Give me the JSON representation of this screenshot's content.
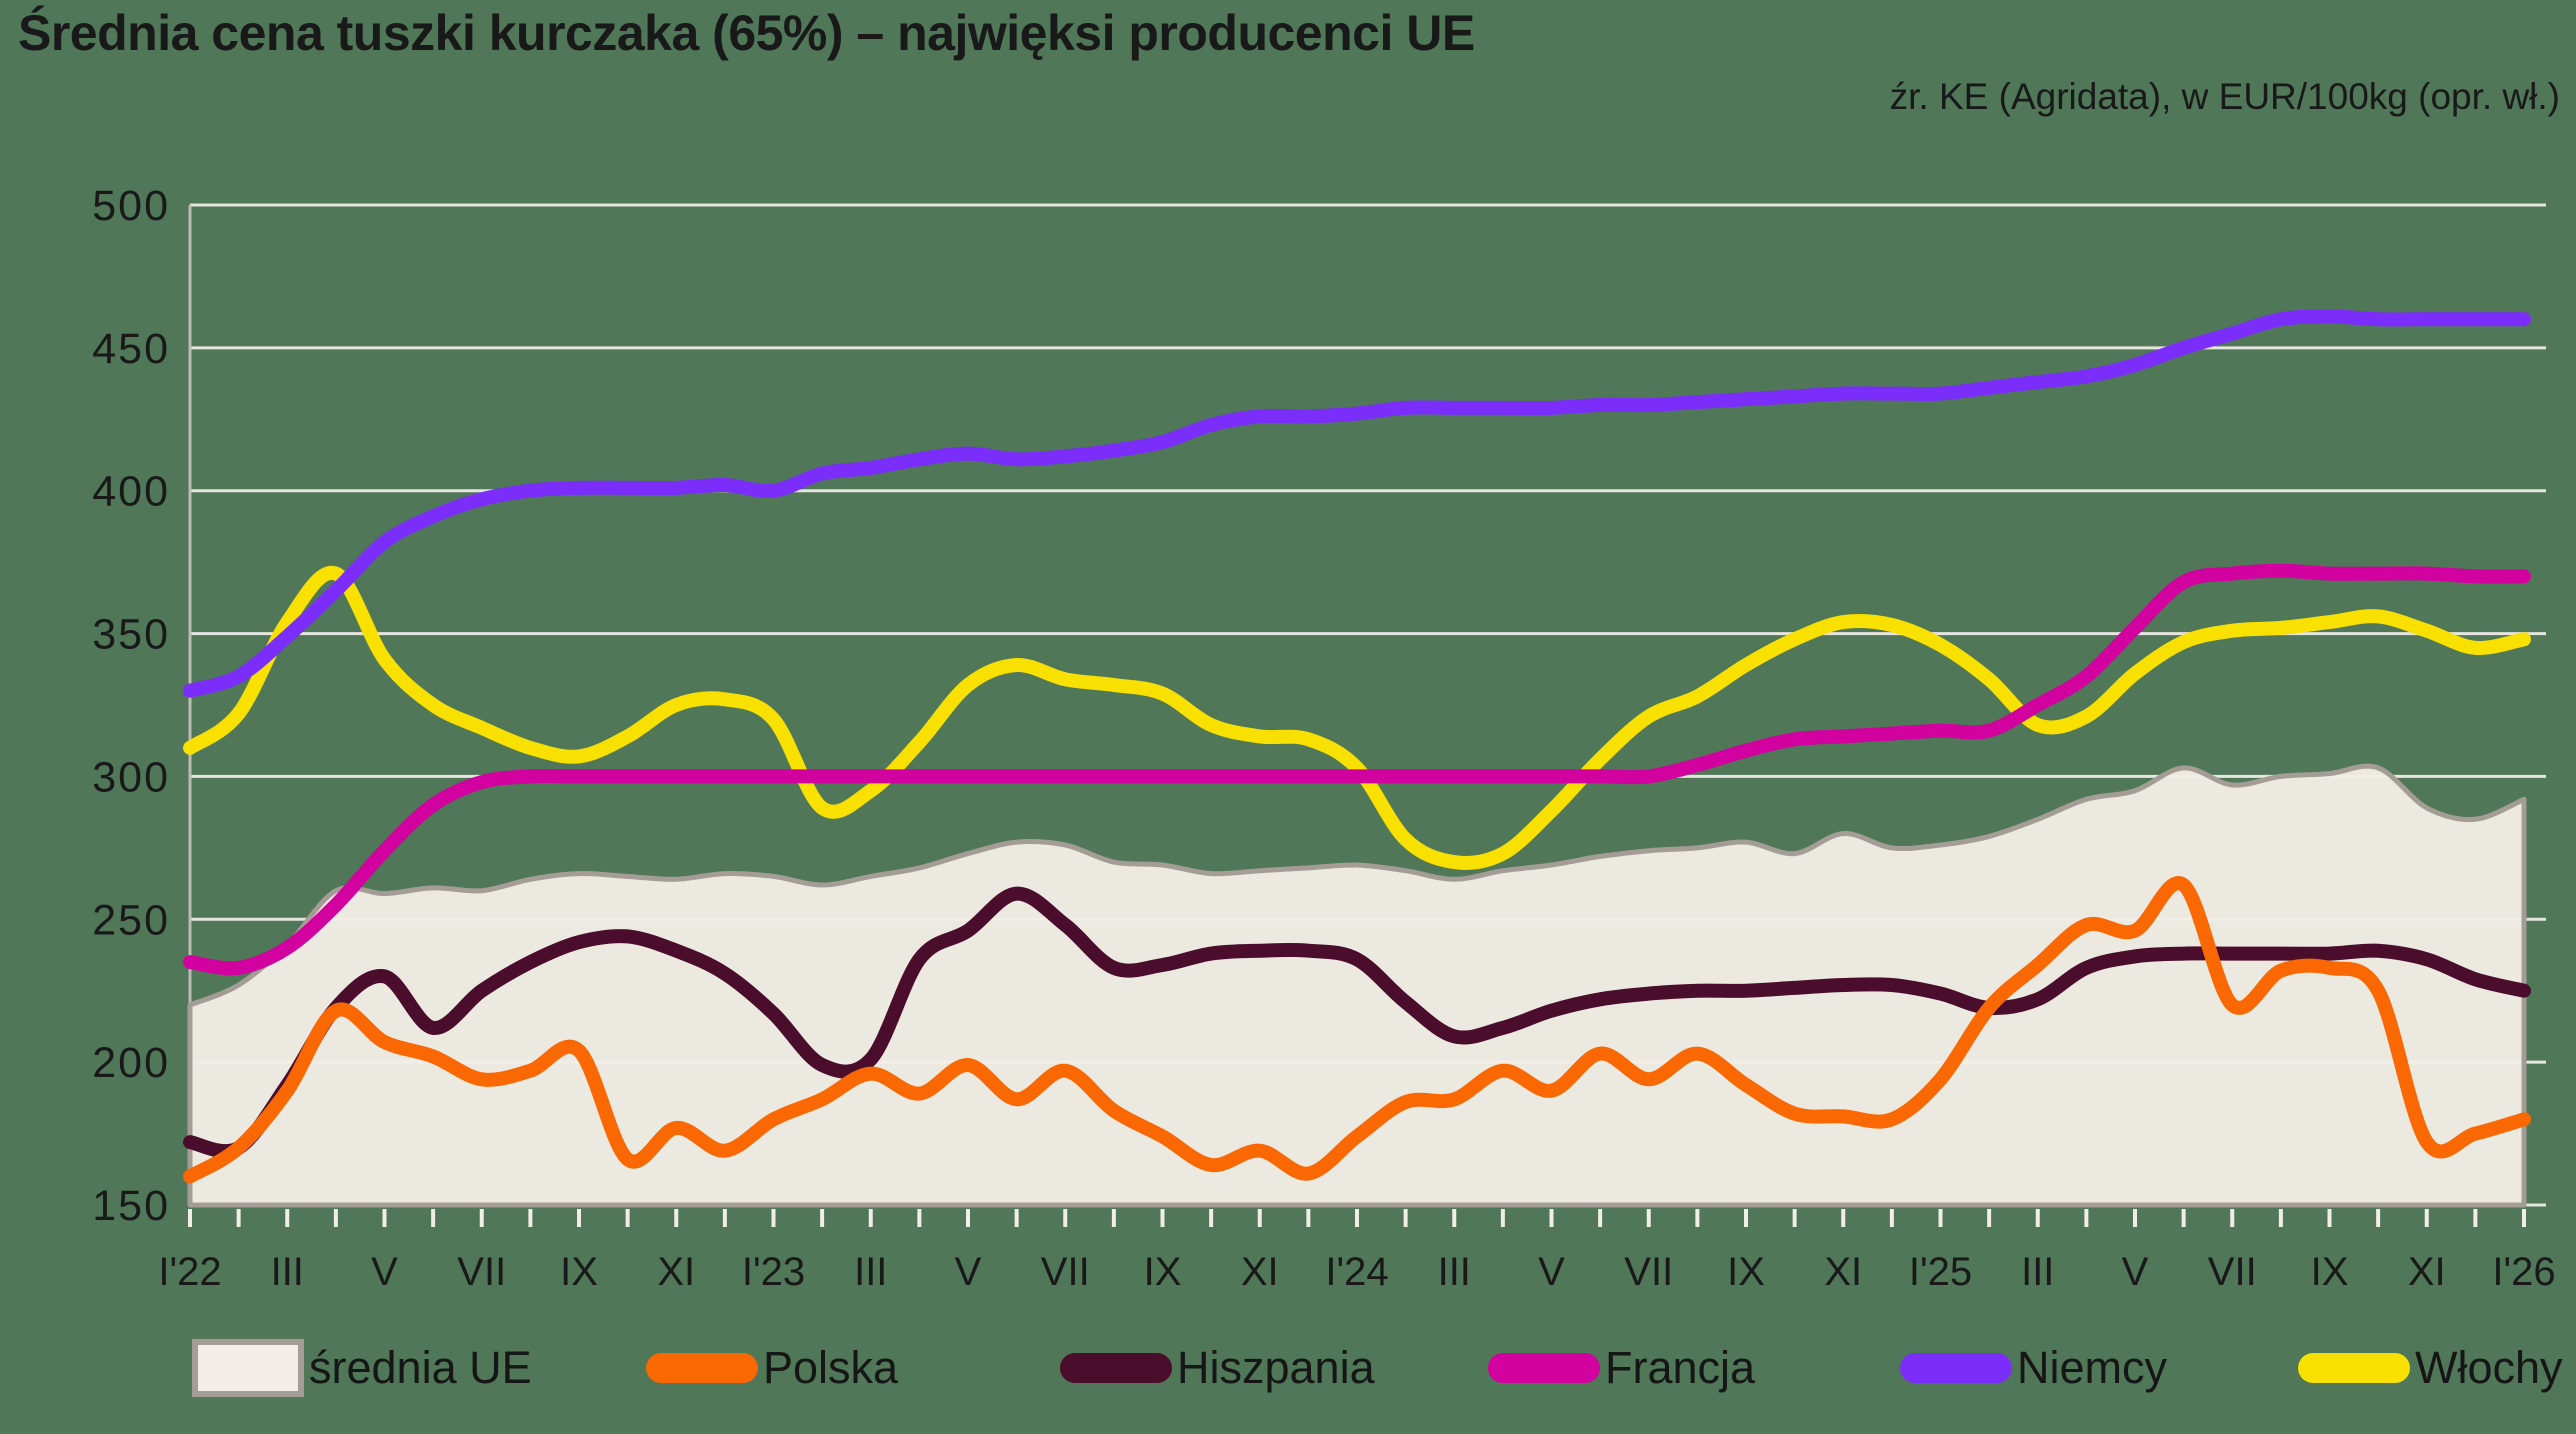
{
  "title": "Średnia cena tuszki kurczaka (65%) – najwięksi producenci UE",
  "source_note": "źr. KE (Agridata), w EUR/100kg (opr. wł.)",
  "colors": {
    "background": "#4F7758",
    "grid": "#E7E5E0",
    "axis": "#BFBAB2",
    "tick": "#F2EDE5",
    "text": "#191919",
    "area_fill": "#F2EDE7",
    "area_stroke": "#A49D95",
    "polska": "#F96802",
    "hiszpania": "#4A0D2C",
    "francja": "#D2009F",
    "niemcy": "#7B2EFA",
    "wlochy": "#F8E000"
  },
  "y_axis": {
    "min": 150,
    "max": 500,
    "step": 50,
    "tick_labels": [
      "150",
      "200",
      "250",
      "300",
      "350",
      "400",
      "450",
      "500"
    ]
  },
  "x_axis": {
    "tick_labels": [
      "I'22",
      "III",
      "V",
      "VII",
      "IX",
      "XI",
      "I'23",
      "III",
      "V",
      "VII",
      "IX",
      "XI",
      "I'24",
      "III",
      "V",
      "VII",
      "IX",
      "XI",
      "I'25",
      "III",
      "V",
      "VII",
      "IX",
      "XI",
      "I'26"
    ]
  },
  "chart_data": {
    "type": "line",
    "title": "Średnia cena tuszki kurczaka (65%) – najwięksi producenci UE",
    "subtitle": "źr. KE (Agridata), w EUR/100kg (opr. wł.)",
    "ylabel": "EUR/100kg",
    "ylim": [
      150,
      500
    ],
    "grid": true,
    "legend_position": "bottom",
    "x": [
      "2022-01",
      "2022-02",
      "2022-03",
      "2022-04",
      "2022-05",
      "2022-06",
      "2022-07",
      "2022-08",
      "2022-09",
      "2022-10",
      "2022-11",
      "2022-12",
      "2023-01",
      "2023-02",
      "2023-03",
      "2023-04",
      "2023-05",
      "2023-06",
      "2023-07",
      "2023-08",
      "2023-09",
      "2023-10",
      "2023-11",
      "2023-12",
      "2024-01",
      "2024-02",
      "2024-03",
      "2024-04",
      "2024-05",
      "2024-06",
      "2024-07",
      "2024-08",
      "2024-09",
      "2024-10",
      "2024-11",
      "2024-12",
      "2025-01",
      "2025-02",
      "2025-03",
      "2025-04",
      "2025-05",
      "2025-06",
      "2025-07",
      "2025-08",
      "2025-09",
      "2025-10",
      "2025-11",
      "2025-12",
      "2026-01"
    ],
    "series": [
      {
        "name": "średnia UE",
        "type": "area",
        "fill": "#F2EDE7",
        "stroke": "#A49D95",
        "values": [
          220,
          227,
          241,
          260,
          259,
          261,
          260,
          264,
          266,
          265,
          264,
          266,
          265,
          262,
          265,
          268,
          273,
          277,
          276,
          270,
          269,
          266,
          267,
          268,
          269,
          267,
          264,
          267,
          269,
          272,
          274,
          275,
          277,
          273,
          280,
          275,
          276,
          279,
          285,
          292,
          295,
          303,
          297,
          300,
          301,
          303,
          289,
          285,
          292
        ]
      },
      {
        "name": "Polska",
        "type": "line",
        "color": "#F96802",
        "values": [
          160,
          170,
          190,
          218,
          207,
          202,
          194,
          197,
          204,
          166,
          177,
          169,
          180,
          187,
          196,
          189,
          199,
          187,
          197,
          183,
          174,
          164,
          169,
          161,
          174,
          186,
          187,
          197,
          190,
          203,
          194,
          203,
          192,
          182,
          181,
          180,
          194,
          219,
          234,
          248,
          246,
          262,
          220,
          232,
          233,
          225,
          172,
          175,
          180
        ]
      },
      {
        "name": "Hiszpania",
        "type": "line",
        "color": "#4A0D2C",
        "values": [
          172,
          170,
          192,
          219,
          230,
          212,
          225,
          235,
          242,
          244,
          239,
          231,
          217,
          199,
          201,
          236,
          246,
          259,
          248,
          233,
          234,
          238,
          239,
          239,
          236,
          221,
          209,
          212,
          218,
          222,
          224,
          225,
          225,
          226,
          227,
          227,
          224,
          219,
          222,
          233,
          237,
          238,
          238,
          238,
          238,
          239,
          236,
          229,
          225
        ]
      },
      {
        "name": "Francja",
        "type": "line",
        "color": "#D2009F",
        "values": [
          235,
          233,
          240,
          255,
          274,
          290,
          298,
          300,
          300,
          300,
          300,
          300,
          300,
          300,
          300,
          300,
          300,
          300,
          300,
          300,
          300,
          300,
          300,
          300,
          300,
          300,
          300,
          300,
          300,
          300,
          300,
          304,
          309,
          313,
          314,
          315,
          316,
          316,
          325,
          335,
          352,
          368,
          371,
          372,
          371,
          371,
          371,
          370,
          370
        ]
      },
      {
        "name": "Niemcy",
        "type": "line",
        "color": "#7B2EFA",
        "values": [
          330,
          335,
          349,
          365,
          382,
          391,
          397,
          400,
          401,
          401,
          401,
          402,
          400,
          406,
          408,
          411,
          413,
          411,
          412,
          414,
          417,
          423,
          426,
          426,
          427,
          429,
          429,
          429,
          429,
          430,
          430,
          431,
          432,
          433,
          434,
          434,
          434,
          436,
          438,
          440,
          444,
          450,
          455,
          460,
          461,
          460,
          460,
          460,
          460
        ]
      },
      {
        "name": "Włochy",
        "type": "line",
        "color": "#F8E000",
        "values": [
          310,
          322,
          354,
          371,
          341,
          325,
          317,
          310,
          307,
          314,
          325,
          327,
          320,
          289,
          295,
          312,
          332,
          339,
          334,
          332,
          329,
          318,
          314,
          313,
          303,
          278,
          270,
          273,
          288,
          306,
          321,
          328,
          339,
          348,
          354,
          353,
          346,
          334,
          318,
          321,
          336,
          347,
          351,
          352,
          354,
          356,
          351,
          345,
          348
        ]
      }
    ],
    "draw_order": [
      "średnia UE",
      "Hiszpania",
      "Polska",
      "Włochy",
      "Francja",
      "Niemcy"
    ]
  }
}
